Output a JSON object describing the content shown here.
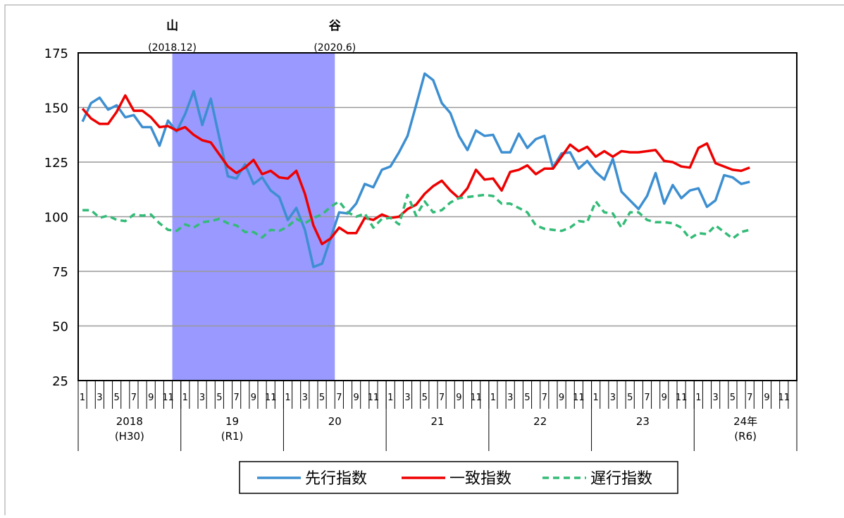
{
  "chart_data": {
    "type": "line",
    "annotations": [
      {
        "text": "山",
        "date": "(2018.12)"
      },
      {
        "text": "谷",
        "date": "(2020.6)"
      }
    ],
    "shaded_range": [
      11,
      29
    ],
    "ylim": [
      25,
      175
    ],
    "yticks": [
      25,
      50,
      75,
      100,
      125,
      150,
      175
    ],
    "grid": true,
    "categories": [
      "1",
      null,
      "3",
      null,
      "5",
      null,
      "7",
      null,
      "9",
      null,
      "11",
      null,
      "1",
      null,
      "3",
      null,
      "5",
      null,
      "7",
      null,
      "9",
      null,
      "11",
      null,
      "1",
      null,
      "3",
      null,
      "5",
      null,
      "7",
      null,
      "9",
      null,
      "11",
      null,
      "1",
      null,
      "3",
      null,
      "5",
      null,
      "7",
      null,
      "9",
      null,
      "11",
      null,
      "1",
      null,
      "3",
      null,
      "5",
      null,
      "7",
      null,
      "9",
      null,
      "11",
      null,
      "1",
      null,
      "3",
      null,
      "5",
      null,
      "7",
      null,
      "9",
      null,
      "11",
      null,
      "1",
      null,
      "3",
      null,
      "5",
      null,
      "7",
      null,
      "9",
      null,
      "11",
      null
    ],
    "years": [
      {
        "label": "2018",
        "sub": "(H30)"
      },
      {
        "label": "19",
        "sub": "(R1)"
      },
      {
        "label": "20"
      },
      {
        "label": "21"
      },
      {
        "label": "22"
      },
      {
        "label": "23"
      },
      {
        "label": "24年",
        "sub": "(R6)"
      }
    ],
    "series": [
      {
        "name": "先行指数",
        "color": "#3d8fd1",
        "dash": false,
        "values": [
          143.5,
          152,
          154.5,
          149,
          151,
          145.5,
          146.5,
          141,
          141,
          132.5,
          144,
          139,
          147,
          157.5,
          142,
          154,
          136,
          118.5,
          117.5,
          124,
          115,
          118,
          112,
          109,
          98.5,
          104,
          94,
          77,
          78.5,
          90,
          102,
          101.5,
          106,
          115,
          113.5,
          121.5,
          123,
          129.5,
          137,
          151,
          165.5,
          162.5,
          152,
          147.5,
          137,
          130.5,
          139.5,
          137,
          137.5,
          129.5,
          129.5,
          138,
          131.5,
          135.5,
          137,
          122.5,
          129,
          129.5,
          122,
          125.5,
          120.5,
          117,
          126.5,
          111.5,
          107.5,
          103.5,
          109.5,
          120,
          106,
          114.5,
          108.5,
          112,
          113,
          104.5,
          107.5,
          119,
          118,
          115,
          116,
          null,
          null,
          null,
          null,
          null
        ]
      },
      {
        "name": "一致指数",
        "color": "#ee0000",
        "dash": false,
        "values": [
          149.5,
          145,
          142.5,
          142.5,
          148,
          155.5,
          148.5,
          148.5,
          145.5,
          141,
          141.5,
          139.5,
          141,
          137.5,
          135,
          134,
          128.5,
          123,
          120,
          122.5,
          126,
          119.5,
          121,
          118,
          117.5,
          121,
          110.5,
          96,
          87.5,
          90,
          95,
          92.5,
          92.5,
          99.5,
          98.5,
          101,
          99.5,
          100,
          103.5,
          105.5,
          110.5,
          114,
          116.5,
          112,
          108.5,
          113,
          121.5,
          117,
          117.5,
          112,
          120.5,
          121.5,
          123.5,
          119.5,
          122,
          122,
          127.5,
          133,
          130,
          132,
          127.5,
          130,
          127.5,
          130,
          129.5,
          129.5,
          130,
          130.5,
          125.5,
          125,
          123,
          122.5,
          131.5,
          133.5,
          124.5,
          123,
          121.5,
          121,
          122.5,
          null,
          null,
          null,
          null,
          null
        ]
      },
      {
        "name": "遅行指数",
        "color": "#33bb77",
        "dash": true,
        "values": [
          103,
          103,
          99.5,
          100.5,
          98.5,
          98,
          101,
          100.5,
          101,
          97,
          94,
          93.5,
          96.5,
          95,
          97.5,
          98,
          99,
          97,
          96,
          93,
          93,
          90.5,
          94,
          93.5,
          95.5,
          99,
          97,
          99.5,
          101,
          104.5,
          107,
          102,
          100,
          101.5,
          95,
          99,
          99.5,
          96.5,
          110,
          100.5,
          107,
          102,
          103,
          106.5,
          108.5,
          109,
          109.5,
          110,
          109.5,
          106,
          106,
          104,
          102,
          96,
          94.5,
          94,
          93.5,
          95,
          98,
          97.5,
          107,
          102,
          101.5,
          95,
          102,
          102,
          98.5,
          97.5,
          97.5,
          97,
          95,
          90,
          92.5,
          92,
          96,
          93,
          90,
          93,
          94,
          null,
          null,
          null,
          null,
          null
        ]
      }
    ]
  }
}
